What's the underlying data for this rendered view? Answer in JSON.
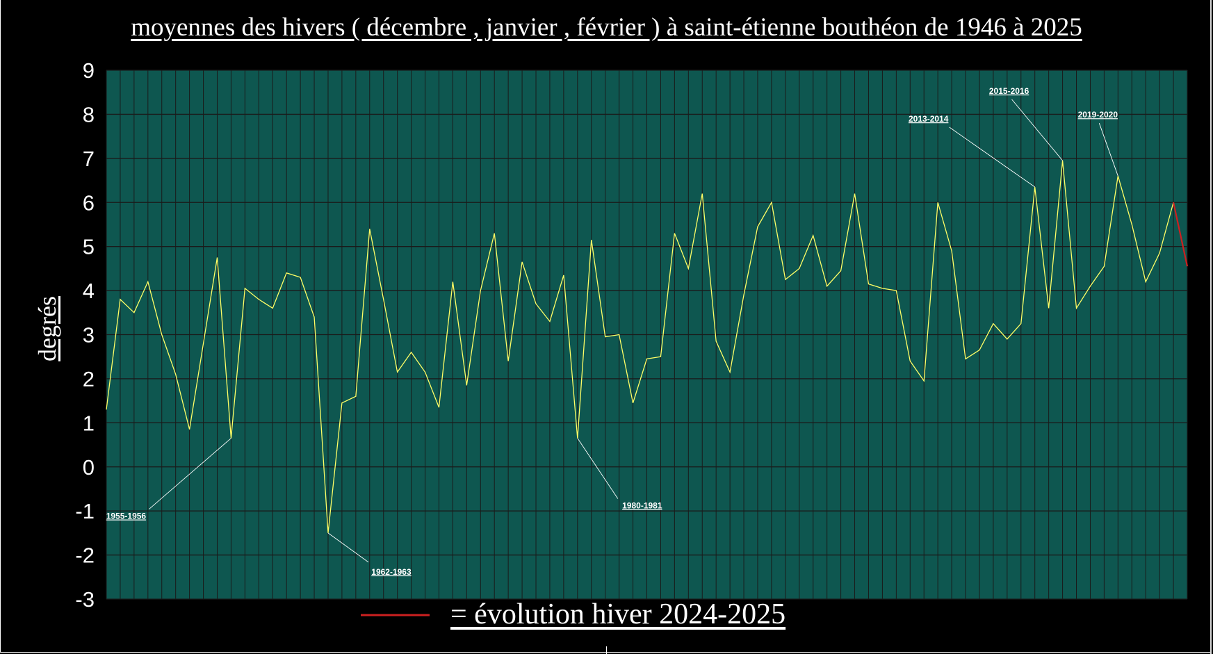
{
  "chart_data": {
    "type": "line",
    "title": "moyennes des hivers ( décembre , janvier , février ) à saint-étienne bouthéon de 1946 à 2025",
    "ylabel": "degrés",
    "xlabel": "",
    "ylim": [
      -3,
      9
    ],
    "yticks": [
      "9",
      "8",
      "7",
      "6",
      "5",
      "4",
      "3",
      "2",
      "1",
      "0",
      "-1",
      "-2",
      "-3"
    ],
    "grid": true,
    "plot_background": "#0e5750",
    "grid_color": "#1a1a1a",
    "series": [
      {
        "color": "#ffff66",
        "values": [
          1.3,
          3.8,
          3.5,
          4.2,
          3.0,
          2.1,
          0.85,
          2.8,
          4.75,
          0.65,
          4.05,
          3.8,
          3.6,
          4.4,
          4.3,
          3.4,
          -1.5,
          1.45,
          1.6,
          5.4,
          3.8,
          2.15,
          2.6,
          2.15,
          1.35,
          4.2,
          1.85,
          4.0,
          5.3,
          2.4,
          4.65,
          3.7,
          3.3,
          4.35,
          0.65,
          5.15,
          2.95,
          3.0,
          1.45,
          2.45,
          2.5,
          5.3,
          4.5,
          6.2,
          2.85,
          2.15,
          3.9,
          5.45,
          6.0,
          4.25,
          4.5,
          5.25,
          4.1,
          4.45,
          6.2,
          4.15,
          4.05,
          4.0,
          2.4,
          1.95,
          6.0,
          4.9,
          2.45,
          2.65,
          3.25,
          2.9,
          3.25,
          6.35,
          3.6,
          6.95,
          3.6,
          4.1,
          4.55,
          6.6,
          5.5,
          4.2,
          4.85,
          6.0
        ]
      },
      {
        "name": "= évolution hiver 2024-2025",
        "color": "#cc2020",
        "values": [
          6.0,
          4.55
        ]
      }
    ],
    "annotations": [
      {
        "label": "1955-1956",
        "point_index": 9
      },
      {
        "label": "1962-1963",
        "point_index": 16
      },
      {
        "label": "1980-1981",
        "point_index": 34
      },
      {
        "label": "2013-2014",
        "point_index": 67
      },
      {
        "label": "2015-2016",
        "point_index": 69
      },
      {
        "label": "2019-2020",
        "point_index": 73
      }
    ],
    "legend": {
      "label": "= évolution hiver 2024-2025",
      "color": "#cc2020",
      "placement": "bottom-center"
    }
  }
}
